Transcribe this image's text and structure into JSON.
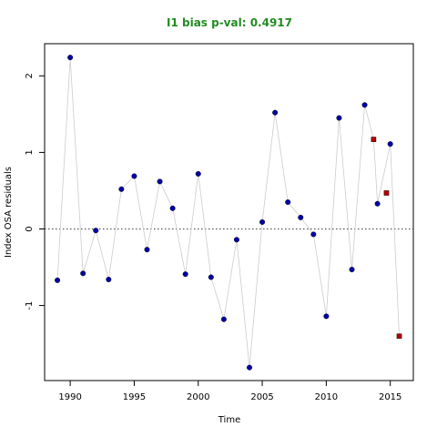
{
  "chart_data": {
    "type": "scatter",
    "title": "I1 bias p-val: 0.4917",
    "title_color": "#228B22",
    "xlabel": "Time",
    "ylabel": "Index OSA residuals",
    "xlim": [
      1988,
      2016.8
    ],
    "ylim": [
      -1.98,
      2.42
    ],
    "x_ticks": [
      1990,
      1995,
      2000,
      2005,
      2010,
      2015
    ],
    "y_ticks": [
      -1,
      0,
      1,
      2
    ],
    "reference_line": {
      "y": 0,
      "style": "dotted",
      "color": "#555555"
    },
    "connector_color": "#cccccc",
    "series": [
      {
        "marker": "circle",
        "color": "#0000a0",
        "points": [
          [
            1989,
            -0.67
          ],
          [
            1990,
            2.24
          ],
          [
            1991,
            -0.58
          ],
          [
            1992,
            -0.02
          ],
          [
            1993,
            -0.66
          ],
          [
            1994,
            0.52
          ],
          [
            1995,
            0.69
          ],
          [
            1996,
            -0.27
          ],
          [
            1997,
            0.62
          ],
          [
            1998,
            0.27
          ],
          [
            1999,
            -0.59
          ],
          [
            2000,
            0.72
          ],
          [
            2001,
            -0.63
          ],
          [
            2002,
            -1.18
          ],
          [
            2003,
            -0.14
          ],
          [
            2004,
            -1.81
          ],
          [
            2005,
            0.09
          ],
          [
            2006,
            1.52
          ],
          [
            2007,
            0.35
          ],
          [
            2008,
            0.15
          ],
          [
            2009,
            -0.07
          ],
          [
            2010,
            -1.14
          ],
          [
            2011,
            1.45
          ],
          [
            2012,
            -0.53
          ],
          [
            2013,
            1.62
          ],
          [
            2014,
            0.33
          ],
          [
            2015,
            1.11
          ]
        ]
      },
      {
        "marker": "square",
        "color": "#b00000",
        "points": [
          [
            2013.7,
            1.17
          ],
          [
            2014.7,
            0.47
          ],
          [
            2015.7,
            -1.4
          ]
        ]
      }
    ],
    "connector_path": [
      [
        1989,
        -0.67
      ],
      [
        1990,
        2.24
      ],
      [
        1991,
        -0.58
      ],
      [
        1992,
        -0.02
      ],
      [
        1993,
        -0.66
      ],
      [
        1994,
        0.52
      ],
      [
        1995,
        0.69
      ],
      [
        1996,
        -0.27
      ],
      [
        1997,
        0.62
      ],
      [
        1998,
        0.27
      ],
      [
        1999,
        -0.59
      ],
      [
        2000,
        0.72
      ],
      [
        2001,
        -0.63
      ],
      [
        2002,
        -1.18
      ],
      [
        2003,
        -0.14
      ],
      [
        2004,
        -1.81
      ],
      [
        2005,
        0.09
      ],
      [
        2006,
        1.52
      ],
      [
        2007,
        0.35
      ],
      [
        2008,
        0.15
      ],
      [
        2009,
        -0.07
      ],
      [
        2010,
        -1.14
      ],
      [
        2011,
        1.45
      ],
      [
        2012,
        -0.53
      ],
      [
        2013,
        1.62
      ],
      [
        2013.7,
        1.17
      ],
      [
        2014,
        0.33
      ],
      [
        2015,
        1.11
      ],
      [
        2015.7,
        -1.4
      ]
    ]
  }
}
